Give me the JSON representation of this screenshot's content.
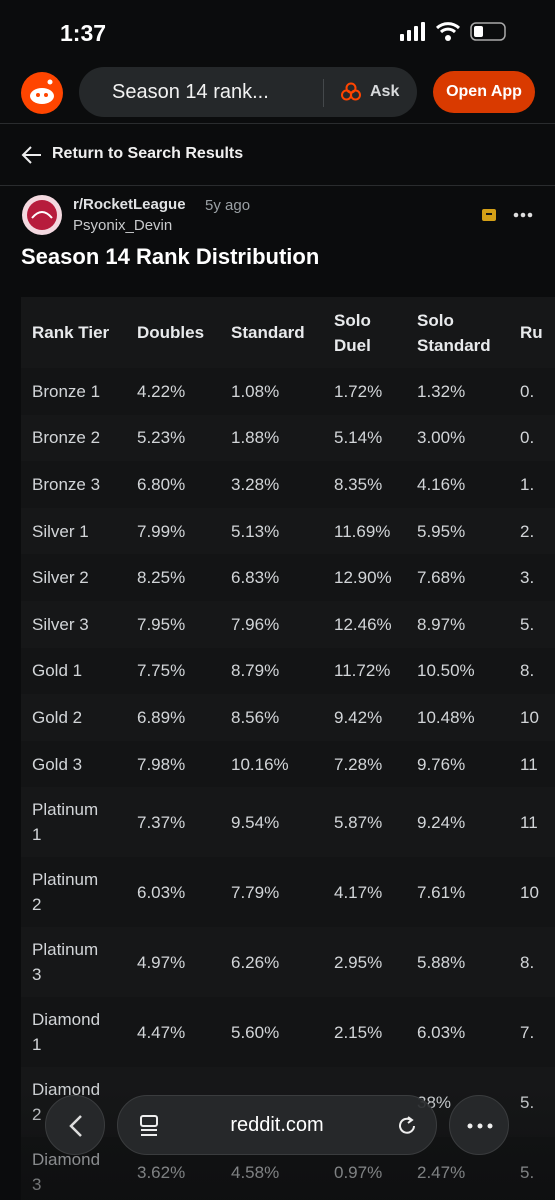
{
  "status_bar": {
    "time": "1:37"
  },
  "header": {
    "search": "Season 14 rank...",
    "ask": "Ask",
    "open_app": "Open App"
  },
  "nav": {
    "back": "Return to Search Results"
  },
  "post": {
    "subreddit": "r/RocketLeague",
    "age": "5y ago",
    "author": "Psyonix_Devin",
    "title": "Season 14 Rank Distribution"
  },
  "table": {
    "headers": [
      "Rank Tier",
      "Doubles",
      "Standard",
      "Solo Duel",
      "Solo Standard",
      "Ru"
    ],
    "rows": [
      [
        "Bronze 1",
        "4.22%",
        "1.08%",
        "1.72%",
        "1.32%",
        "0."
      ],
      [
        "Bronze 2",
        "5.23%",
        "1.88%",
        "5.14%",
        "3.00%",
        "0."
      ],
      [
        "Bronze 3",
        "6.80%",
        "3.28%",
        "8.35%",
        "4.16%",
        "1."
      ],
      [
        "Silver 1",
        "7.99%",
        "5.13%",
        "11.69%",
        "5.95%",
        "2."
      ],
      [
        "Silver 2",
        "8.25%",
        "6.83%",
        "12.90%",
        "7.68%",
        "3."
      ],
      [
        "Silver 3",
        "7.95%",
        "7.96%",
        "12.46%",
        "8.97%",
        "5."
      ],
      [
        "Gold 1",
        "7.75%",
        "8.79%",
        "11.72%",
        "10.50%",
        "8."
      ],
      [
        "Gold 2",
        "6.89%",
        "8.56%",
        "9.42%",
        "10.48%",
        "10"
      ],
      [
        "Gold 3",
        "7.98%",
        "10.16%",
        "7.28%",
        "9.76%",
        "11"
      ],
      [
        "Platinum 1",
        "7.37%",
        "9.54%",
        "5.87%",
        "9.24%",
        "11"
      ],
      [
        "Platinum 2",
        "6.03%",
        "7.79%",
        "4.17%",
        "7.61%",
        "10"
      ],
      [
        "Platinum 3",
        "4.97%",
        "6.26%",
        "2.95%",
        "5.88%",
        "8."
      ],
      [
        "Diamond 1",
        "4.47%",
        "5.60%",
        "2.15%",
        "6.03%",
        "7."
      ],
      [
        "Diamond 2",
        null,
        null,
        null,
        "38%",
        "5."
      ],
      [
        "Diamond 3",
        "3.62%",
        "4.58%",
        "0.97%",
        "2.47%",
        "5."
      ]
    ]
  },
  "bottom_bar": {
    "url": "reddit.com"
  }
}
